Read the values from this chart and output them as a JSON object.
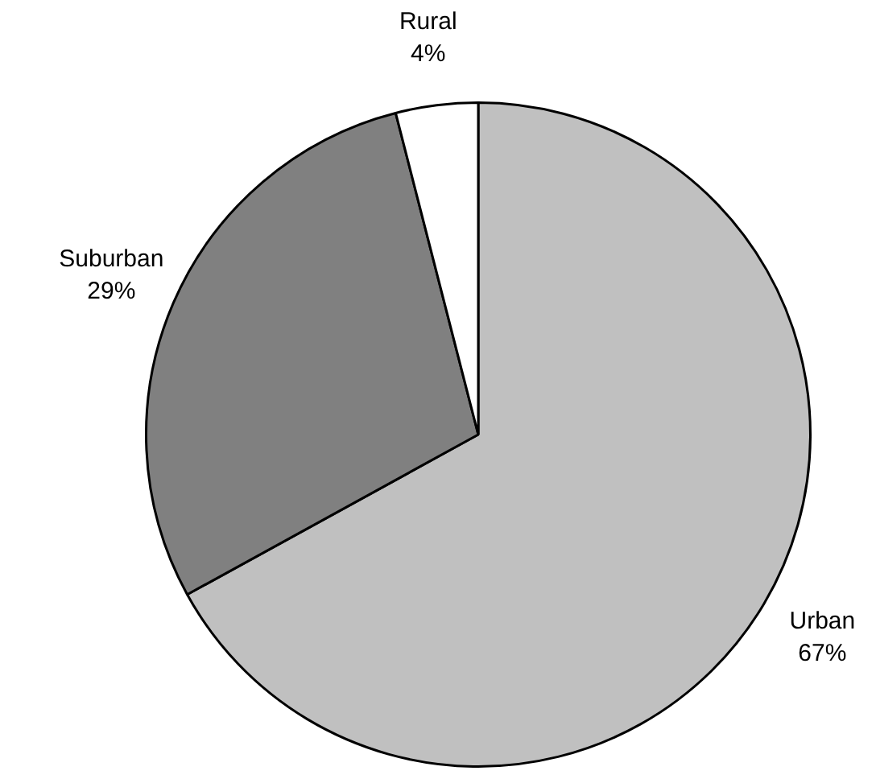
{
  "chart_data": {
    "type": "pie",
    "categories": [
      "Urban",
      "Suburban",
      "Rural"
    ],
    "values": [
      67,
      29,
      4
    ],
    "colors": [
      "#c0c0c0",
      "#808080",
      "#ffffff"
    ],
    "value_labels": [
      "67%",
      "29%",
      "4%"
    ],
    "legend": false
  }
}
